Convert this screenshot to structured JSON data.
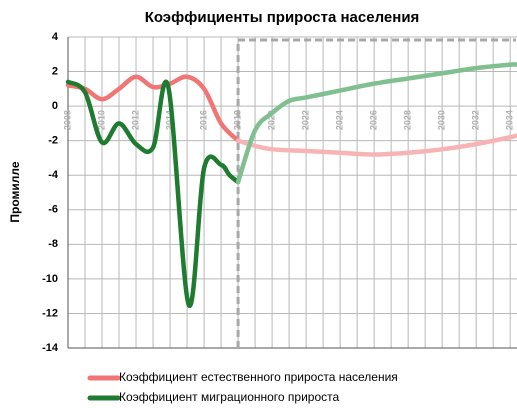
{
  "chart_data": {
    "type": "line",
    "title": "Коэффициенты прироста населения",
    "y_label": "Промилле",
    "xlim": [
      2008,
      2034.4
    ],
    "ylim": [
      -14,
      4
    ],
    "yticks": [
      4,
      2,
      0,
      -2,
      -4,
      -6,
      -8,
      -10,
      -12,
      -14
    ],
    "xticks": [
      2008,
      2010,
      2012,
      2014,
      2016,
      2018,
      2020,
      2022,
      2024,
      2026,
      2028,
      2030,
      2032,
      2034
    ],
    "minor_xticks": [
      2009,
      2011,
      2013,
      2015,
      2017,
      2019,
      2021,
      2023,
      2025,
      2027,
      2029,
      2031,
      2033
    ],
    "grid": true,
    "forecast_start": 2018,
    "legend": "bottom",
    "series": [
      {
        "name": "Коэффициент естественного прироста населения",
        "color": "#f07575",
        "forecast_color": "#f8b4b4",
        "x": [
          2008,
          2009,
          2010,
          2011,
          2012,
          2013,
          2014,
          2015,
          2016,
          2017,
          2018,
          2019,
          2020,
          2022,
          2024,
          2026,
          2028,
          2030,
          2032,
          2034,
          2034.4
        ],
        "values": [
          1.2,
          1.0,
          0.4,
          1.0,
          1.7,
          1.1,
          1.3,
          1.7,
          1.0,
          -1.0,
          -2.0,
          -2.3,
          -2.5,
          -2.6,
          -2.7,
          -2.8,
          -2.7,
          -2.5,
          -2.2,
          -1.8,
          -1.7
        ]
      },
      {
        "name": "Коэффициент миграционного прироста",
        "color": "#1e7b30",
        "forecast_color": "#80bf90",
        "x": [
          2008,
          2009,
          2010,
          2011,
          2012,
          2013,
          2013.9,
          2015.1,
          2016,
          2017,
          2017.5,
          2018,
          2019,
          2020,
          2021,
          2022,
          2024,
          2026,
          2028,
          2030,
          2032,
          2034,
          2034.4
        ],
        "values": [
          1.4,
          0.8,
          -2.1,
          -1.0,
          -2.2,
          -2.4,
          1.1,
          -11.5,
          -3.6,
          -3.4,
          -4.0,
          -4.4,
          -1.4,
          -0.4,
          0.3,
          0.5,
          0.9,
          1.3,
          1.6,
          1.9,
          2.2,
          2.4,
          2.4
        ]
      }
    ]
  }
}
